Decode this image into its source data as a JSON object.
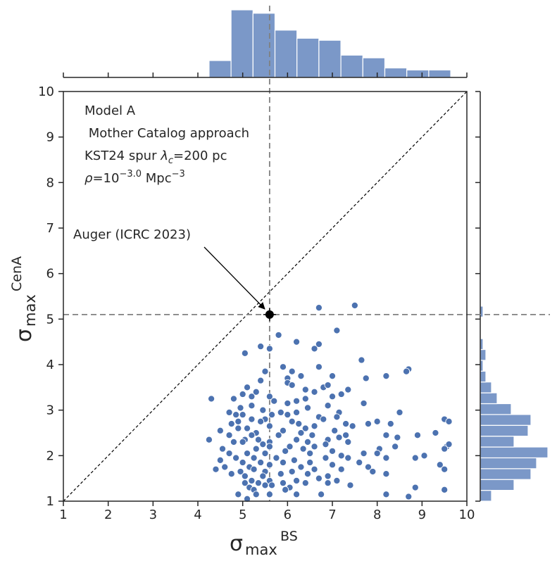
{
  "chart_data": {
    "type": "scatter",
    "xlabel": "σ",
    "xlabel_sub": "max",
    "xlabel_sup": "BS",
    "ylabel": "σ",
    "ylabel_sub": "max",
    "ylabel_sup": "CenA",
    "xlim": [
      1,
      10
    ],
    "ylim": [
      1,
      10
    ],
    "xticks": [
      "1",
      "2",
      "3",
      "4",
      "5",
      "6",
      "7",
      "8",
      "9",
      "10"
    ],
    "yticks": [
      "1",
      "2",
      "3",
      "4",
      "5",
      "6",
      "7",
      "8",
      "9",
      "10"
    ],
    "point_color": "#4c72b0",
    "hist_color": "#7b98c8",
    "annotation_lines": [
      "Model A",
      " Mother Catalog approach",
      "KST24 spur λc=200 pc",
      "ρ=10−3.0 Mpc−3"
    ],
    "reference": {
      "label": "Auger (ICRC 2023)",
      "x": 5.6,
      "y": 5.1
    },
    "points": [
      [
        6.7,
        5.25
      ],
      [
        7.5,
        5.3
      ],
      [
        5.05,
        4.25
      ],
      [
        5.4,
        4.4
      ],
      [
        5.6,
        4.35
      ],
      [
        6.2,
        4.5
      ],
      [
        6.7,
        4.45
      ],
      [
        6.6,
        4.35
      ],
      [
        5.8,
        4.65
      ],
      [
        7.1,
        4.75
      ],
      [
        5.9,
        3.95
      ],
      [
        6.1,
        3.85
      ],
      [
        6.7,
        3.95
      ],
      [
        7.65,
        4.1
      ],
      [
        8.7,
        3.9
      ],
      [
        8.65,
        3.85
      ],
      [
        5.5,
        3.85
      ],
      [
        6.0,
        3.7
      ],
      [
        6.0,
        3.6
      ],
      [
        5.4,
        3.65
      ],
      [
        6.3,
        3.75
      ],
      [
        7.0,
        3.75
      ],
      [
        7.75,
        3.7
      ],
      [
        8.2,
        3.75
      ],
      [
        6.1,
        3.55
      ],
      [
        5.1,
        3.5
      ],
      [
        6.8,
        3.5
      ],
      [
        6.9,
        3.55
      ],
      [
        5.0,
        3.35
      ],
      [
        5.3,
        3.4
      ],
      [
        6.4,
        3.45
      ],
      [
        7.35,
        3.45
      ],
      [
        4.3,
        3.25
      ],
      [
        4.8,
        3.25
      ],
      [
        5.2,
        3.3
      ],
      [
        5.6,
        3.3
      ],
      [
        6.6,
        3.4
      ],
      [
        7.2,
        3.35
      ],
      [
        5.7,
        3.2
      ],
      [
        6.0,
        3.15
      ],
      [
        6.4,
        3.25
      ],
      [
        7.0,
        3.3
      ],
      [
        5.2,
        3.1
      ],
      [
        6.2,
        3.2
      ],
      [
        6.9,
        3.1
      ],
      [
        7.7,
        3.15
      ],
      [
        4.95,
        3.05
      ],
      [
        5.45,
        3.0
      ],
      [
        6.45,
        3.05
      ],
      [
        5.85,
        2.95
      ],
      [
        4.7,
        2.95
      ],
      [
        4.85,
        2.9
      ],
      [
        5.0,
        2.9
      ],
      [
        6.0,
        2.9
      ],
      [
        6.2,
        2.95
      ],
      [
        7.15,
        2.95
      ],
      [
        8.5,
        2.95
      ],
      [
        5.65,
        2.9
      ],
      [
        6.7,
        2.85
      ],
      [
        4.9,
        2.75
      ],
      [
        5.2,
        2.8
      ],
      [
        5.5,
        2.8
      ],
      [
        6.1,
        2.75
      ],
      [
        7.1,
        2.85
      ],
      [
        9.5,
        2.8
      ],
      [
        9.6,
        2.75
      ],
      [
        4.75,
        2.7
      ],
      [
        5.4,
        2.75
      ],
      [
        6.25,
        2.7
      ],
      [
        6.8,
        2.8
      ],
      [
        7.3,
        2.7
      ],
      [
        8.3,
        2.7
      ],
      [
        7.8,
        2.7
      ],
      [
        8.0,
        2.75
      ],
      [
        5.1,
        2.6
      ],
      [
        5.6,
        2.65
      ],
      [
        6.6,
        2.65
      ],
      [
        5.9,
        2.55
      ],
      [
        6.4,
        2.6
      ],
      [
        7.45,
        2.65
      ],
      [
        4.5,
        2.55
      ],
      [
        4.9,
        2.6
      ],
      [
        5.3,
        2.5
      ],
      [
        6.3,
        2.5
      ],
      [
        7.05,
        2.55
      ],
      [
        9.3,
        2.5
      ],
      [
        4.7,
        2.45
      ],
      [
        5.2,
        2.45
      ],
      [
        5.8,
        2.45
      ],
      [
        6.55,
        2.45
      ],
      [
        7.3,
        2.45
      ],
      [
        8.2,
        2.45
      ],
      [
        8.9,
        2.45
      ],
      [
        5.05,
        2.35
      ],
      [
        5.35,
        2.35
      ],
      [
        5.6,
        2.3
      ],
      [
        6.2,
        2.35
      ],
      [
        6.9,
        2.35
      ],
      [
        7.15,
        2.4
      ],
      [
        8.45,
        2.4
      ],
      [
        4.25,
        2.35
      ],
      [
        4.8,
        2.3
      ],
      [
        5.0,
        2.3
      ],
      [
        5.45,
        2.25
      ],
      [
        6.45,
        2.3
      ],
      [
        7.35,
        2.3
      ],
      [
        4.55,
        2.15
      ],
      [
        5.6,
        2.2
      ],
      [
        6.05,
        2.2
      ],
      [
        6.6,
        2.2
      ],
      [
        6.85,
        2.25
      ],
      [
        9.55,
        2.2
      ],
      [
        9.6,
        2.25
      ],
      [
        5.3,
        2.15
      ],
      [
        5.95,
        2.1
      ],
      [
        6.35,
        2.15
      ],
      [
        7.0,
        2.1
      ],
      [
        8.05,
        2.15
      ],
      [
        8.4,
        2.2
      ],
      [
        4.7,
        2.05
      ],
      [
        5.1,
        2.05
      ],
      [
        5.5,
        2.05
      ],
      [
        6.5,
        2.05
      ],
      [
        7.2,
        2.0
      ],
      [
        7.7,
        2.05
      ],
      [
        8.0,
        2.05
      ],
      [
        9.05,
        2.0
      ],
      [
        9.5,
        2.15
      ],
      [
        4.85,
        1.95
      ],
      [
        5.25,
        1.95
      ],
      [
        5.75,
        1.95
      ],
      [
        6.15,
        1.9
      ],
      [
        6.85,
        1.95
      ],
      [
        7.35,
        1.95
      ],
      [
        8.2,
        1.95
      ],
      [
        8.85,
        1.95
      ],
      [
        4.5,
        1.9
      ],
      [
        5.0,
        1.85
      ],
      [
        5.4,
        1.85
      ],
      [
        5.9,
        1.85
      ],
      [
        6.5,
        1.85
      ],
      [
        7.6,
        1.85
      ],
      [
        4.6,
        1.75
      ],
      [
        5.15,
        1.75
      ],
      [
        5.6,
        1.8
      ],
      [
        6.3,
        1.75
      ],
      [
        7.0,
        1.8
      ],
      [
        7.8,
        1.75
      ],
      [
        9.4,
        1.8
      ],
      [
        4.4,
        1.7
      ],
      [
        4.95,
        1.65
      ],
      [
        5.25,
        1.7
      ],
      [
        5.5,
        1.65
      ],
      [
        6.1,
        1.65
      ],
      [
        6.6,
        1.7
      ],
      [
        7.2,
        1.7
      ],
      [
        7.9,
        1.65
      ],
      [
        9.5,
        1.7
      ],
      [
        4.75,
        1.6
      ],
      [
        5.05,
        1.55
      ],
      [
        5.45,
        1.55
      ],
      [
        5.85,
        1.6
      ],
      [
        6.45,
        1.6
      ],
      [
        6.9,
        1.55
      ],
      [
        8.2,
        1.6
      ],
      [
        5.2,
        1.45
      ],
      [
        5.6,
        1.45
      ],
      [
        6.2,
        1.45
      ],
      [
        6.7,
        1.5
      ],
      [
        7.1,
        1.45
      ],
      [
        5.05,
        1.4
      ],
      [
        5.35,
        1.4
      ],
      [
        5.65,
        1.35
      ],
      [
        5.9,
        1.4
      ],
      [
        6.4,
        1.4
      ],
      [
        6.9,
        1.4
      ],
      [
        5.15,
        1.3
      ],
      [
        5.5,
        1.35
      ],
      [
        6.05,
        1.3
      ],
      [
        7.4,
        1.35
      ],
      [
        8.85,
        1.3
      ],
      [
        9.5,
        1.25
      ],
      [
        5.25,
        1.25
      ],
      [
        5.95,
        1.25
      ],
      [
        4.9,
        1.15
      ],
      [
        5.3,
        1.15
      ],
      [
        5.6,
        1.15
      ],
      [
        6.2,
        1.15
      ],
      [
        6.75,
        1.15
      ],
      [
        8.2,
        1.15
      ],
      [
        8.7,
        1.1
      ],
      [
        5.1,
        1.05
      ]
    ],
    "hist_x": {
      "edges": [
        4.25,
        4.74,
        5.23,
        5.72,
        6.21,
        6.7,
        7.19,
        7.68,
        8.17,
        8.66,
        9.15,
        9.64
      ],
      "counts": [
        25,
        100,
        95,
        70,
        58,
        55,
        33,
        29,
        14,
        11,
        11
      ]
    },
    "hist_y": {
      "edges": [
        1.0,
        1.238,
        1.476,
        1.714,
        1.952,
        2.19,
        2.428,
        2.666,
        2.904,
        3.142,
        3.38,
        3.618,
        3.856,
        4.094,
        4.332,
        4.57,
        4.808,
        5.046,
        5.284
      ],
      "counts": [
        4,
        12,
        18,
        20,
        24,
        12,
        17,
        18,
        11,
        6,
        4,
        2,
        1,
        2,
        1,
        0,
        0,
        1
      ]
    }
  }
}
